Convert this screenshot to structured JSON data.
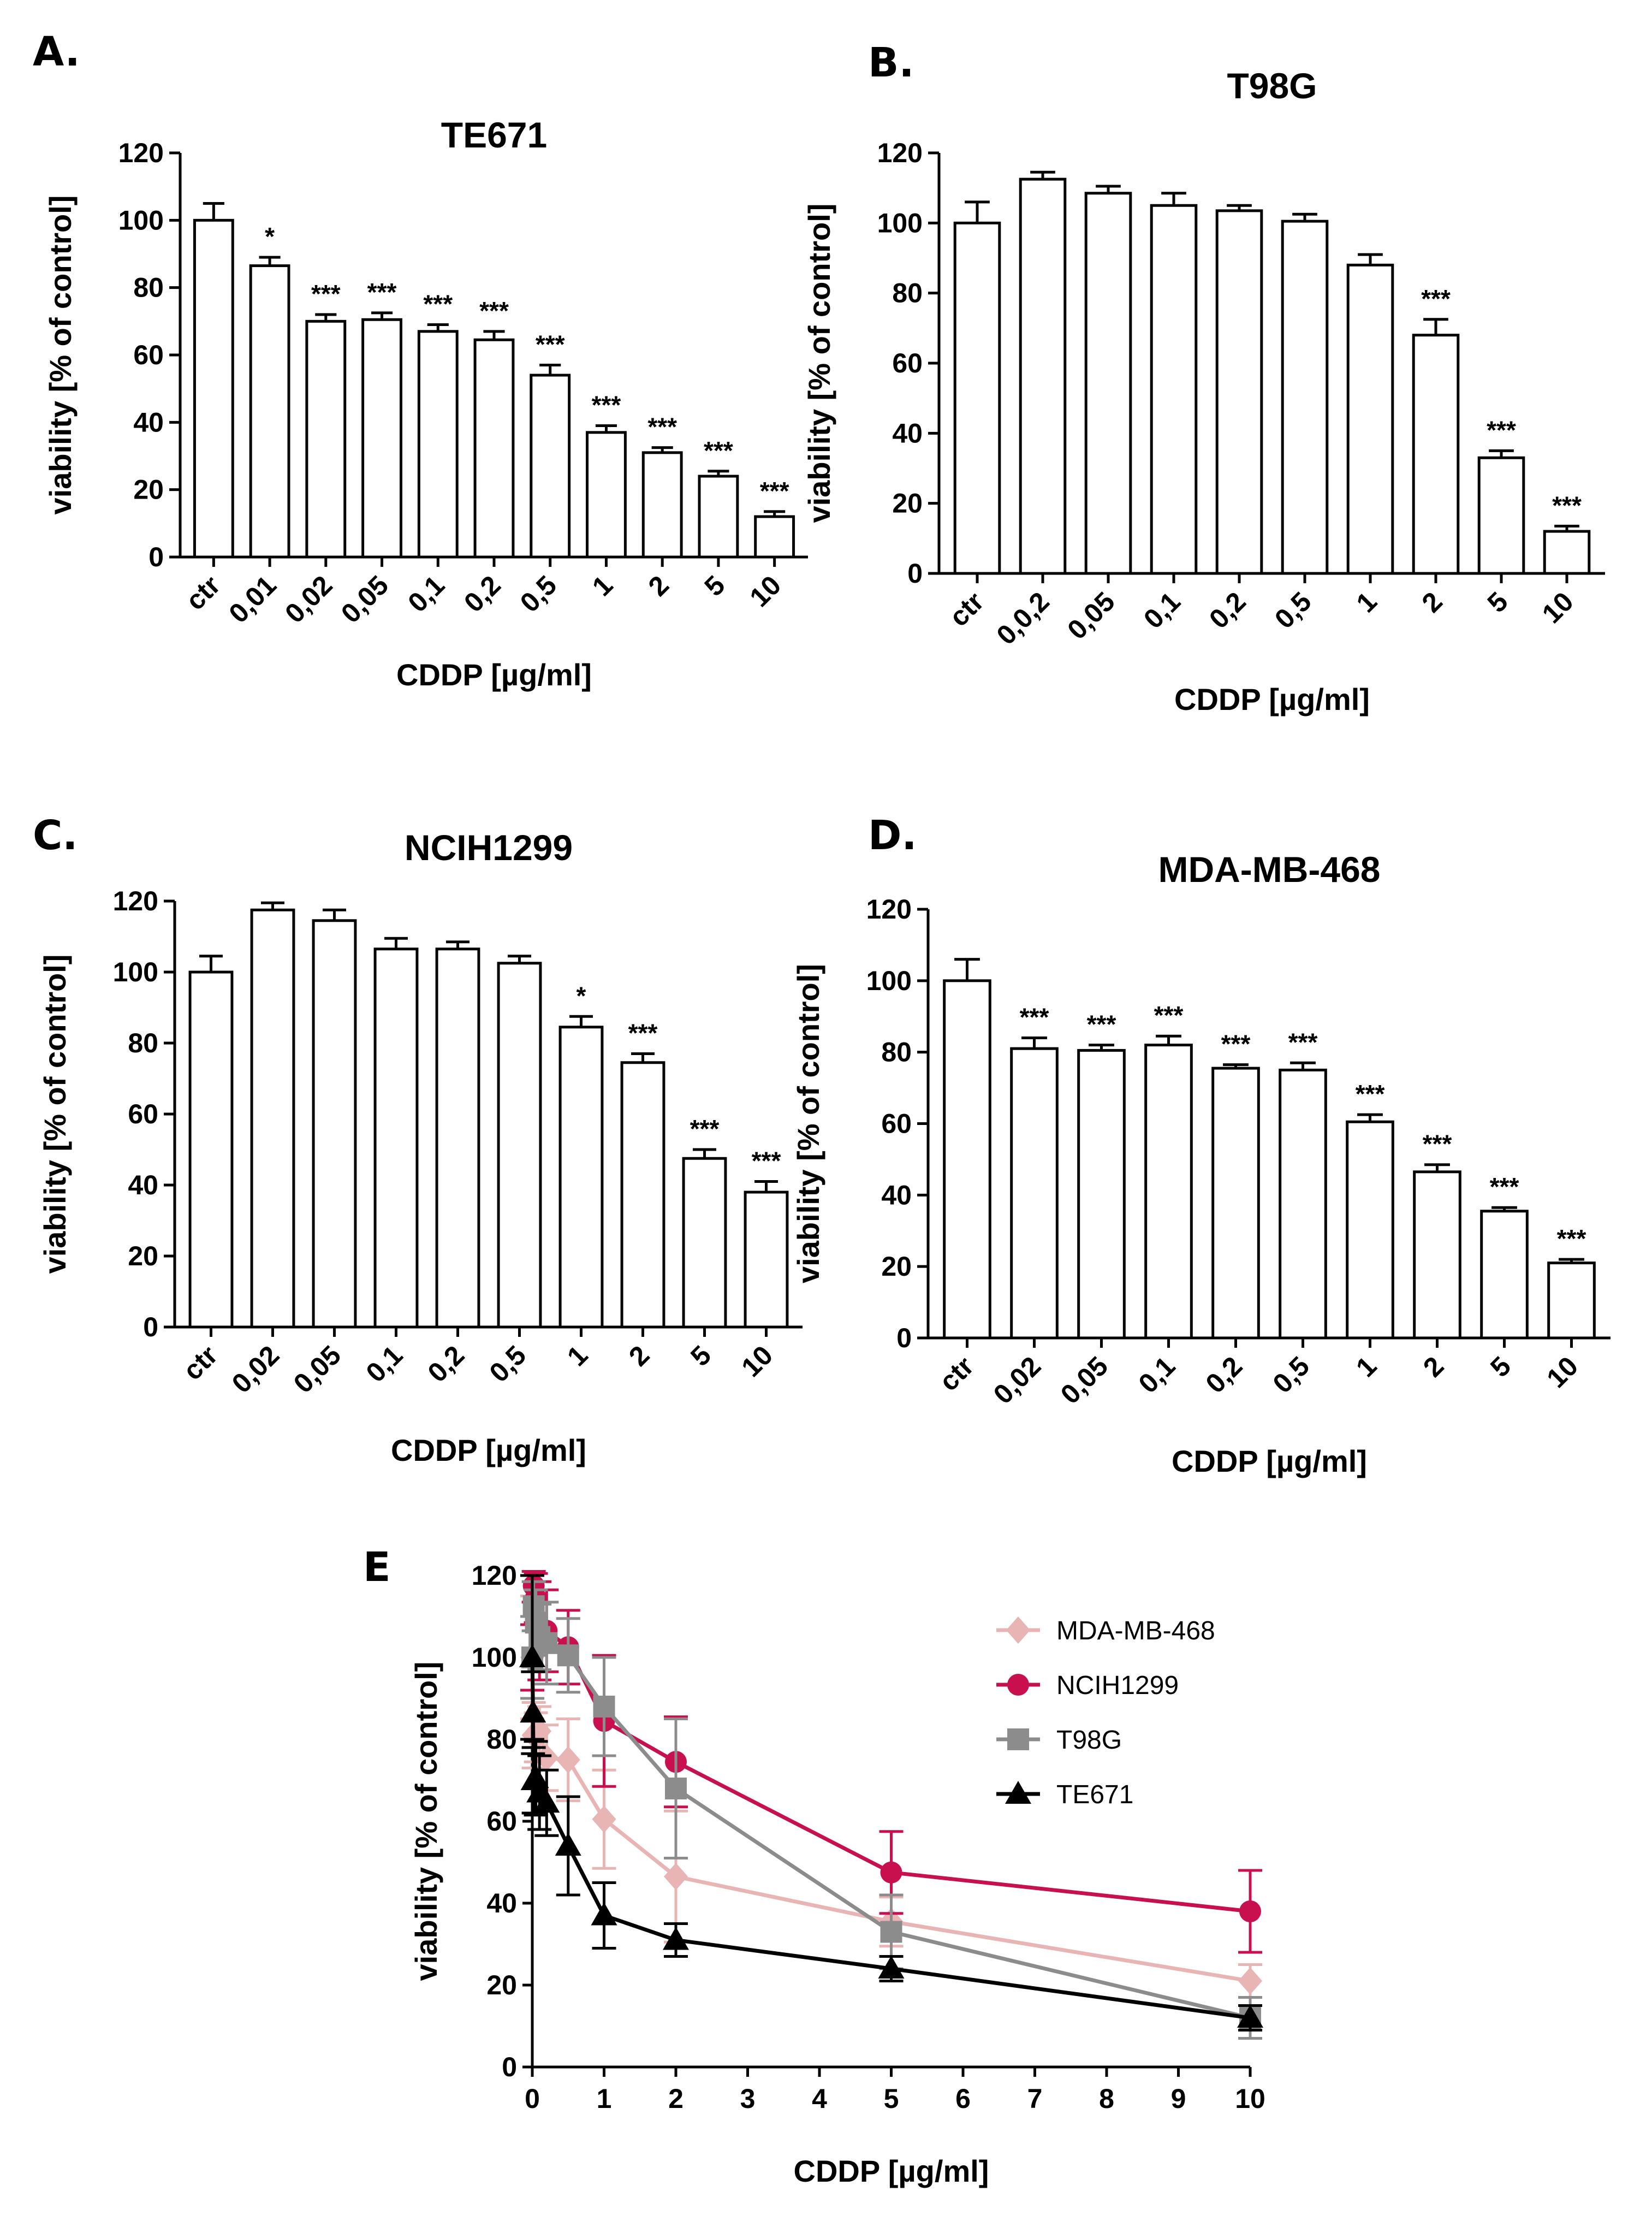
{
  "chart_data": [
    {
      "panel": "A.",
      "type": "bar",
      "title": "TE671",
      "xlabel": "CDDP [µg/ml]",
      "ylabel": "viability [% of control]",
      "ylim": [
        0,
        120
      ],
      "yticks": [
        "0",
        "20",
        "40",
        "60",
        "80",
        "100",
        "120"
      ],
      "categories": [
        "ctr",
        "0,01",
        "0,02",
        "0,05",
        "0,1",
        "0,2",
        "0,5",
        "1",
        "2",
        "5",
        "10"
      ],
      "values": [
        100,
        86.5,
        70,
        70.5,
        67,
        64.5,
        54,
        37,
        31,
        24,
        12
      ],
      "errors": [
        5,
        2.5,
        2,
        2,
        2,
        2.5,
        3,
        2,
        1.5,
        1.5,
        1.5
      ],
      "significance": [
        "",
        "*",
        "***",
        "***",
        "***",
        "***",
        "***",
        "***",
        "***",
        "***",
        "***"
      ]
    },
    {
      "panel": "B.",
      "type": "bar",
      "title": "T98G",
      "xlabel": "CDDP [µg/ml]",
      "ylabel": "viability [% of control]",
      "ylim": [
        0,
        120
      ],
      "yticks": [
        "0",
        "20",
        "40",
        "60",
        "80",
        "100",
        "120"
      ],
      "categories": [
        "ctr",
        "0,0,2",
        "0,05",
        "0,1",
        "0,2",
        "0,5",
        "1",
        "2",
        "5",
        "10"
      ],
      "values": [
        100,
        112.5,
        108.5,
        105,
        103.5,
        100.5,
        88,
        68,
        33,
        12
      ],
      "errors": [
        6,
        2,
        2,
        3.5,
        1.5,
        2,
        3,
        4.5,
        2,
        1.5
      ],
      "significance": [
        "",
        "",
        "",
        "",
        "",
        "",
        "",
        "***",
        "***",
        "***"
      ]
    },
    {
      "panel": "C.",
      "type": "bar",
      "title": "NCIH1299",
      "xlabel": "CDDP [µg/ml]",
      "ylabel": "viability [% of control]",
      "ylim": [
        0,
        120
      ],
      "yticks": [
        "0",
        "20",
        "40",
        "60",
        "80",
        "100",
        "120"
      ],
      "categories": [
        "ctr",
        "0,02",
        "0,05",
        "0,1",
        "0,2",
        "0,5",
        "1",
        "2",
        "5",
        "10"
      ],
      "values": [
        100,
        117.5,
        114.5,
        106.5,
        106.5,
        102.5,
        84.5,
        74.5,
        47.5,
        38
      ],
      "errors": [
        4.5,
        2,
        3,
        3,
        2,
        2,
        3,
        2.5,
        2.5,
        3
      ],
      "significance": [
        "",
        "",
        "",
        "",
        "",
        "",
        "*",
        "***",
        "***",
        "***"
      ]
    },
    {
      "panel": "D.",
      "type": "bar",
      "title": "MDA-MB-468",
      "xlabel": "CDDP [µg/ml]",
      "ylabel": "viability [% of control]",
      "ylim": [
        0,
        120
      ],
      "yticks": [
        "0",
        "20",
        "40",
        "60",
        "80",
        "100",
        "120"
      ],
      "categories": [
        "ctr",
        "0,02",
        "0,05",
        "0,1",
        "0,2",
        "0,5",
        "1",
        "2",
        "5",
        "10"
      ],
      "values": [
        100,
        81,
        80.5,
        82,
        75.5,
        75,
        60.5,
        46.5,
        35.5,
        21
      ],
      "errors": [
        6,
        3,
        1.5,
        2.5,
        1,
        2,
        2,
        2,
        1,
        1
      ],
      "significance": [
        "",
        "***",
        "***",
        "***",
        "***",
        "***",
        "***",
        "***",
        "***",
        "***"
      ]
    },
    {
      "panel": "E",
      "type": "line",
      "xlabel": "CDDP [µg/ml]",
      "ylabel": "viability [% of control]",
      "xlim": [
        0,
        10
      ],
      "ylim": [
        0,
        120
      ],
      "xticks": [
        "0",
        "1",
        "2",
        "3",
        "4",
        "5",
        "6",
        "7",
        "8",
        "9",
        "10"
      ],
      "yticks": [
        "0",
        "20",
        "40",
        "60",
        "80",
        "100",
        "120"
      ],
      "legend_position": "top-right",
      "series": [
        {
          "name": "MDA-MB-468",
          "color": "#e8b4b4",
          "marker": "diamond",
          "x": [
            0,
            0.02,
            0.05,
            0.1,
            0.2,
            0.5,
            1,
            2,
            5,
            10
          ],
          "y": [
            100,
            81,
            80.5,
            82,
            75.5,
            75,
            60.5,
            46.5,
            35.5,
            21
          ],
          "err": [
            15,
            8,
            6,
            6,
            8,
            10,
            12,
            16,
            6,
            4
          ]
        },
        {
          "name": "NCIH1299",
          "color": "#c8104e",
          "marker": "circle",
          "x": [
            0,
            0.02,
            0.05,
            0.1,
            0.2,
            0.5,
            1,
            2,
            5,
            10
          ],
          "y": [
            100,
            117.5,
            114.5,
            106.5,
            106.5,
            102.5,
            84.5,
            74.5,
            47.5,
            38
          ],
          "err": [
            8,
            4,
            6,
            12,
            10,
            9,
            16,
            11,
            10,
            10
          ]
        },
        {
          "name": "T98G",
          "color": "#8c8c8c",
          "marker": "square",
          "x": [
            0,
            0.02,
            0.05,
            0.1,
            0.2,
            0.5,
            1,
            2,
            5,
            10
          ],
          "y": [
            100,
            112.5,
            108.5,
            105,
            103.5,
            100.5,
            88,
            68,
            33,
            12
          ],
          "err": [
            10,
            6,
            8,
            8,
            10,
            9,
            12,
            17,
            9,
            5
          ]
        },
        {
          "name": "TE671",
          "color": "#000000",
          "marker": "triangle",
          "x": [
            0,
            0.01,
            0.02,
            0.05,
            0.1,
            0.2,
            0.5,
            1,
            2,
            5,
            10
          ],
          "y": [
            100,
            86.5,
            70,
            70.5,
            67,
            64.5,
            54,
            37,
            31,
            24,
            12
          ],
          "err": [
            20,
            10,
            8,
            9,
            9,
            8,
            12,
            8,
            4,
            3,
            3
          ]
        }
      ]
    }
  ]
}
